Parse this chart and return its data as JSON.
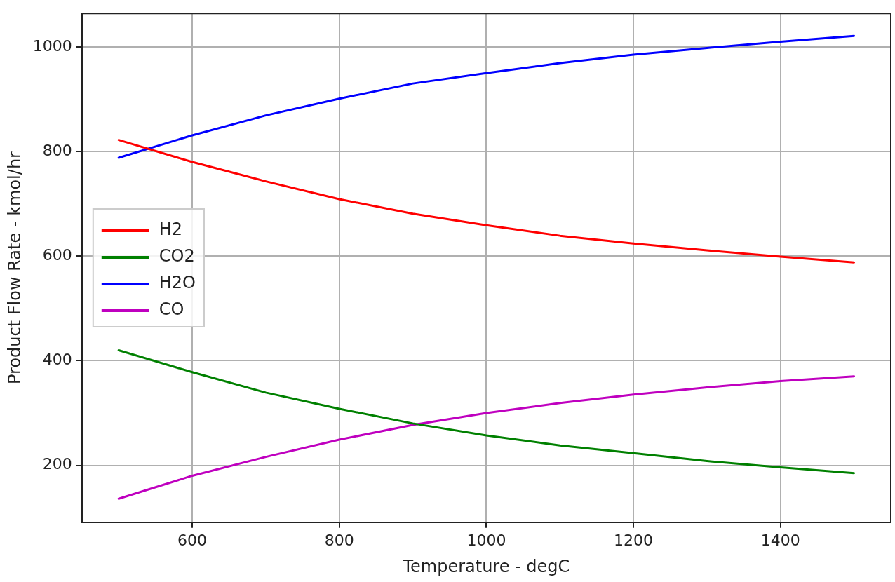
{
  "chart_data": {
    "type": "line",
    "xlabel": "Temperature - degC",
    "ylabel": "Product Flow Rate - kmol/hr",
    "x": [
      500,
      600,
      700,
      800,
      900,
      1000,
      1100,
      1200,
      1300,
      1400,
      1500
    ],
    "series": [
      {
        "name": "H2",
        "color": "#ff0000",
        "values": [
          822,
          780,
          743,
          709,
          681,
          659,
          639,
          624,
          611,
          599,
          588
        ]
      },
      {
        "name": "CO2",
        "color": "#008000",
        "values": [
          420,
          378,
          339,
          308,
          280,
          257,
          238,
          223,
          208,
          196,
          185
        ]
      },
      {
        "name": "H2O",
        "color": "#0000ff",
        "values": [
          788,
          831,
          869,
          901,
          930,
          950,
          969,
          985,
          998,
          1010,
          1021
        ]
      },
      {
        "name": "CO",
        "color": "#bf00bf",
        "values": [
          136,
          180,
          216,
          249,
          277,
          300,
          319,
          335,
          349,
          361,
          370
        ]
      }
    ],
    "xlim": [
      450,
      1550
    ],
    "ylim": [
      91,
      1064
    ],
    "xticks": [
      600,
      800,
      1000,
      1200,
      1400
    ],
    "yticks": [
      200,
      400,
      600,
      800,
      1000
    ],
    "grid": true,
    "legend": "center left",
    "marker": "none",
    "line_style": "solid"
  }
}
